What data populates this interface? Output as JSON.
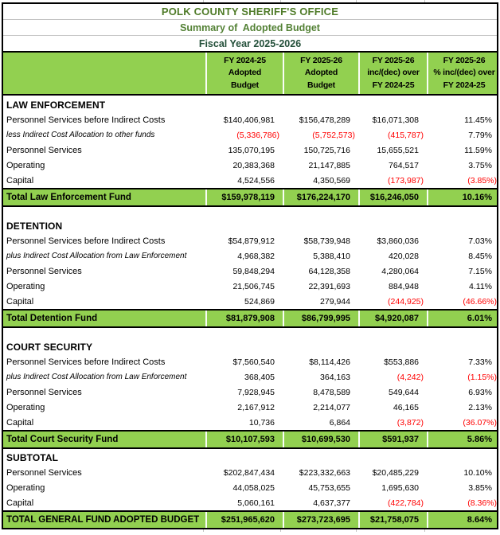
{
  "header": {
    "title": "POLK COUNTY SHERIFF'S OFFICE",
    "subtitle": "Summary of  Adopted Budget",
    "fiscal_year": "Fiscal Year 2025-2026"
  },
  "colors": {
    "band_green": "#92D050",
    "title_green": "#4F7B28",
    "subtitle_green": "#538135",
    "fiscal_year_color": "#24503A",
    "negative_red": "#FF0000"
  },
  "columns": [
    {
      "lines": [
        "FY 2024-25",
        "Adopted",
        "Budget"
      ]
    },
    {
      "lines": [
        "FY 2025-26",
        "Adopted",
        "Budget"
      ]
    },
    {
      "lines": [
        "FY 2025-26",
        "inc/(dec) over",
        "FY 2024-25"
      ]
    },
    {
      "lines": [
        "FY 2025-26",
        "% inc/(dec) over",
        "FY 2024-25"
      ]
    }
  ],
  "sections": [
    {
      "name": "LAW ENFORCEMENT",
      "rows": [
        {
          "label": "Personnel Services before Indirect Costs",
          "italic": false,
          "values": [
            "$140,406,981",
            "$156,478,289",
            "$16,071,308",
            "11.45%"
          ]
        },
        {
          "label": "less Indirect Cost Allocation to other funds",
          "italic": true,
          "values": [
            "(5,336,786)",
            "(5,752,573)",
            "(415,787)",
            "7.79%"
          ]
        },
        {
          "label": "Personnel Services",
          "italic": false,
          "values": [
            "135,070,195",
            "150,725,716",
            "15,655,521",
            "11.59%"
          ]
        },
        {
          "label": "Operating",
          "italic": false,
          "values": [
            "20,383,368",
            "21,147,885",
            "764,517",
            "3.75%"
          ]
        },
        {
          "label": "Capital",
          "italic": false,
          "values": [
            "4,524,556",
            "4,350,569",
            "(173,987)",
            "(3.85%)"
          ]
        }
      ],
      "total": {
        "label": "Total Law Enforcement Fund",
        "values": [
          "$159,978,119",
          "$176,224,170",
          "$16,246,050",
          "10.16%"
        ]
      }
    },
    {
      "name": "DETENTION",
      "rows": [
        {
          "label": "Personnel Services before Indirect Costs",
          "italic": false,
          "values": [
            "$54,879,912",
            "$58,739,948",
            "$3,860,036",
            "7.03%"
          ]
        },
        {
          "label": "plus Indirect Cost Allocation from Law Enforcement",
          "italic": true,
          "values": [
            "4,968,382",
            "5,388,410",
            "420,028",
            "8.45%"
          ]
        },
        {
          "label": "Personnel Services",
          "italic": false,
          "values": [
            "59,848,294",
            "64,128,358",
            "4,280,064",
            "7.15%"
          ]
        },
        {
          "label": "Operating",
          "italic": false,
          "values": [
            "21,506,745",
            "22,391,693",
            "884,948",
            "4.11%"
          ]
        },
        {
          "label": "Capital",
          "italic": false,
          "values": [
            "524,869",
            "279,944",
            "(244,925)",
            "(46.66%)"
          ]
        }
      ],
      "total": {
        "label": "Total Detention Fund",
        "values": [
          "$81,879,908",
          "$86,799,995",
          "$4,920,087",
          "6.01%"
        ]
      }
    },
    {
      "name": "COURT SECURITY",
      "rows": [
        {
          "label": "Personnel Services before Indirect Costs",
          "italic": false,
          "values": [
            "$7,560,540",
            "$8,114,426",
            "$553,886",
            "7.33%"
          ]
        },
        {
          "label": "plus Indirect Cost Allocation from Law Enforcement",
          "italic": true,
          "values": [
            "368,405",
            "364,163",
            "(4,242)",
            "(1.15%)"
          ]
        },
        {
          "label": "Personnel Services",
          "italic": false,
          "values": [
            "7,928,945",
            "8,478,589",
            "549,644",
            "6.93%"
          ]
        },
        {
          "label": "Operating",
          "italic": false,
          "values": [
            "2,167,912",
            "2,214,077",
            "46,165",
            "2.13%"
          ]
        },
        {
          "label": "Capital",
          "italic": false,
          "values": [
            "10,736",
            "6,864",
            "(3,872)",
            "(36.07%)"
          ]
        }
      ],
      "total": {
        "label": "Total Court Security Fund",
        "values": [
          "$10,107,593",
          "$10,699,530",
          "$591,937",
          "5.86%"
        ]
      }
    },
    {
      "name": "SUBTOTAL",
      "rows": [
        {
          "label": "Personnel Services",
          "italic": false,
          "values": [
            "$202,847,434",
            "$223,332,663",
            "$20,485,229",
            "10.10%"
          ]
        },
        {
          "label": "Operating",
          "italic": false,
          "values": [
            "44,058,025",
            "45,753,655",
            "1,695,630",
            "3.85%"
          ]
        },
        {
          "label": "Capital",
          "italic": false,
          "values": [
            "5,060,161",
            "4,637,377",
            "(422,784)",
            "(8.36%)"
          ]
        }
      ],
      "total": {
        "label": "TOTAL GENERAL FUND ADOPTED BUDGET",
        "values": [
          "$251,965,620",
          "$273,723,695",
          "$21,758,075",
          "8.64%"
        ]
      }
    }
  ]
}
